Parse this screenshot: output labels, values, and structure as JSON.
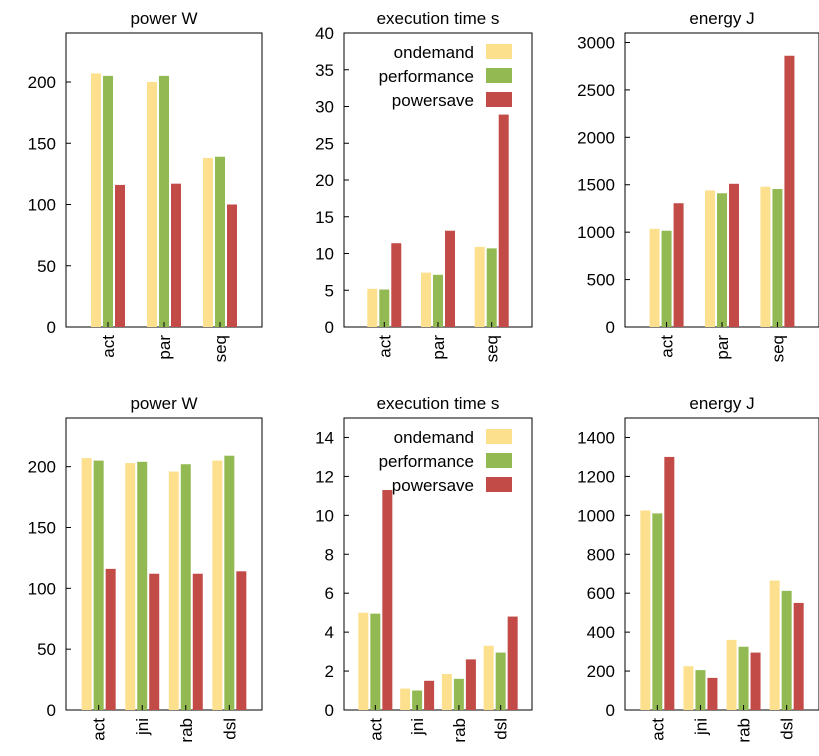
{
  "colors": {
    "ondemand": "#fde08e",
    "performance": "#93ba52",
    "powersave": "#c24b47"
  },
  "chart_data": [
    {
      "type": "bar",
      "title": "power W",
      "categories": [
        "act",
        "par",
        "seq"
      ],
      "ylim": [
        0,
        240
      ],
      "yticks": [
        "0",
        "50",
        "100",
        "150",
        "200"
      ],
      "ytick_values": [
        0,
        50,
        100,
        150,
        200
      ],
      "legend": "none",
      "series": [
        {
          "name": "ondemand",
          "values": [
            207,
            200,
            138
          ]
        },
        {
          "name": "performance",
          "values": [
            205,
            205,
            139
          ]
        },
        {
          "name": "powersave",
          "values": [
            116,
            117,
            100
          ]
        }
      ]
    },
    {
      "type": "bar",
      "title": "execution time s",
      "categories": [
        "act",
        "par",
        "seq"
      ],
      "ylim": [
        0,
        40
      ],
      "yticks": [
        "0",
        "5",
        "10",
        "15",
        "20",
        "25",
        "30",
        "35",
        "40"
      ],
      "ytick_values": [
        0,
        5,
        10,
        15,
        20,
        25,
        30,
        35,
        40
      ],
      "legend": "top-right",
      "series": [
        {
          "name": "ondemand",
          "values": [
            5.2,
            7.4,
            10.9
          ]
        },
        {
          "name": "performance",
          "values": [
            5.1,
            7.1,
            10.7
          ]
        },
        {
          "name": "powersave",
          "values": [
            11.4,
            13.1,
            28.9
          ]
        }
      ]
    },
    {
      "type": "bar",
      "title": "energy J",
      "categories": [
        "act",
        "par",
        "seq"
      ],
      "ylim": [
        0,
        3100
      ],
      "yticks": [
        "0",
        "500",
        "1000",
        "1500",
        "2000",
        "2500",
        "3000"
      ],
      "ytick_values": [
        0,
        500,
        1000,
        1500,
        2000,
        2500,
        3000
      ],
      "legend": "none",
      "series": [
        {
          "name": "ondemand",
          "values": [
            1035,
            1440,
            1480
          ]
        },
        {
          "name": "performance",
          "values": [
            1015,
            1410,
            1455
          ]
        },
        {
          "name": "powersave",
          "values": [
            1305,
            1510,
            2860
          ]
        }
      ]
    },
    {
      "type": "bar",
      "title": "power W",
      "categories": [
        "act",
        "jni",
        "rab",
        "dsl"
      ],
      "ylim": [
        0,
        240
      ],
      "yticks": [
        "0",
        "50",
        "100",
        "150",
        "200"
      ],
      "ytick_values": [
        0,
        50,
        100,
        150,
        200
      ],
      "legend": "none",
      "series": [
        {
          "name": "ondemand",
          "values": [
            207,
            203,
            196,
            205
          ]
        },
        {
          "name": "performance",
          "values": [
            205,
            204,
            202,
            209
          ]
        },
        {
          "name": "powersave",
          "values": [
            116,
            112,
            112,
            114
          ]
        }
      ]
    },
    {
      "type": "bar",
      "title": "execution time s",
      "categories": [
        "act",
        "jni",
        "rab",
        "dsl"
      ],
      "ylim": [
        0,
        15
      ],
      "yticks": [
        "0",
        "2",
        "4",
        "6",
        "8",
        "10",
        "12",
        "14"
      ],
      "ytick_values": [
        0,
        2,
        4,
        6,
        8,
        10,
        12,
        14
      ],
      "legend": "top-right",
      "series": [
        {
          "name": "ondemand",
          "values": [
            5.0,
            1.1,
            1.85,
            3.3
          ]
        },
        {
          "name": "performance",
          "values": [
            4.95,
            1.0,
            1.6,
            2.95
          ]
        },
        {
          "name": "powersave",
          "values": [
            11.3,
            1.5,
            2.6,
            4.8
          ]
        }
      ]
    },
    {
      "type": "bar",
      "title": "energy J",
      "categories": [
        "act",
        "jni",
        "rab",
        "dsl"
      ],
      "ylim": [
        0,
        1500
      ],
      "yticks": [
        "0",
        "200",
        "400",
        "600",
        "800",
        "1000",
        "1200",
        "1400"
      ],
      "ytick_values": [
        0,
        200,
        400,
        600,
        800,
        1000,
        1200,
        1400
      ],
      "legend": "none",
      "series": [
        {
          "name": "ondemand",
          "values": [
            1025,
            225,
            360,
            665
          ]
        },
        {
          "name": "performance",
          "values": [
            1010,
            205,
            325,
            612
          ]
        },
        {
          "name": "powersave",
          "values": [
            1300,
            165,
            295,
            550
          ]
        }
      ]
    }
  ]
}
